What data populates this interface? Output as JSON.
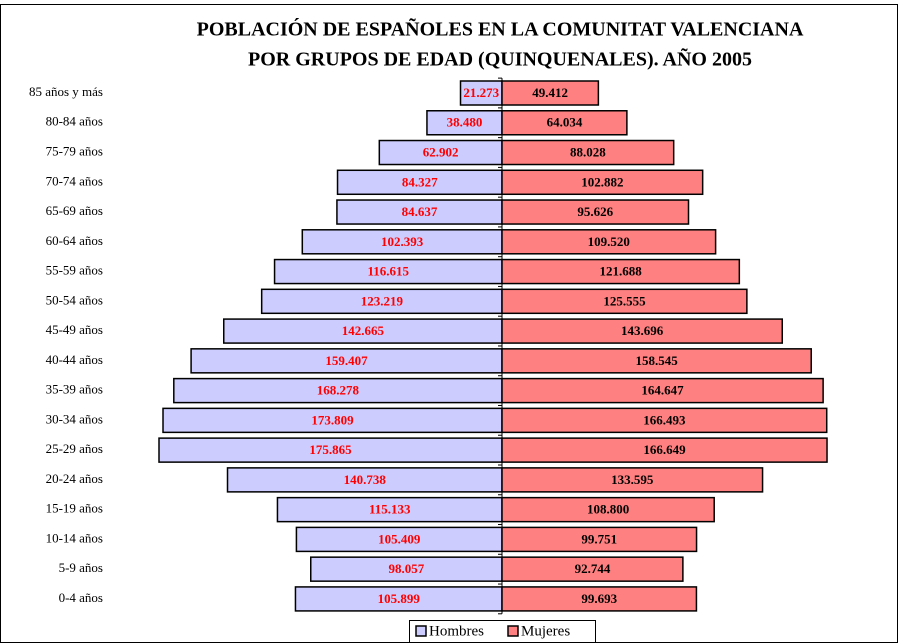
{
  "chart_data": {
    "type": "pyramid",
    "title": [
      "POBLACIÓN DE ESPAÑOLES EN LA COMUNITAT VALENCIANA",
      "POR GRUPOS DE EDAD (QUINQUENALES). AÑO 2005"
    ],
    "categories": [
      "85 años y más",
      "80-84 años",
      "75-79 años",
      "70-74 años",
      "65-69 años",
      "60-64 años",
      "55-59 años",
      "50-54 años",
      "45-49 años",
      "40-44 años",
      "35-39 años",
      "30-34 años",
      "25-29 años",
      "20-24 años",
      "15-19 años",
      "10-14 años",
      "5-9 años",
      "0-4 años"
    ],
    "series": [
      {
        "name": "Hombres",
        "color": "#ccccff",
        "label_color": "#ff0000",
        "values": [
          21273,
          38480,
          62902,
          84327,
          84637,
          102393,
          116615,
          123219,
          142665,
          159407,
          168278,
          173809,
          175865,
          140738,
          115133,
          105409,
          98057,
          105899
        ],
        "value_labels": [
          "21.273",
          "38.480",
          "62.902",
          "84.327",
          "84.637",
          "102.393",
          "116.615",
          "123.219",
          "142.665",
          "159.407",
          "168.278",
          "173.809",
          "175.865",
          "140.738",
          "115.133",
          "105.409",
          "98.057",
          "105.899"
        ]
      },
      {
        "name": "Mujeres",
        "color": "#ff8080",
        "label_color": "#000000",
        "values": [
          49412,
          64034,
          88028,
          102882,
          95626,
          109520,
          121688,
          125555,
          143696,
          158545,
          164647,
          166493,
          166649,
          133595,
          108800,
          99751,
          92744,
          99693
        ],
        "value_labels": [
          "49.412",
          "64.034",
          "88.028",
          "102.882",
          "95.626",
          "109.520",
          "121.688",
          "125.555",
          "143.696",
          "158.545",
          "164.647",
          "166.493",
          "166.649",
          "133.595",
          "108.800",
          "99.751",
          "92.744",
          "99.693"
        ]
      }
    ],
    "legend": "bottom"
  }
}
